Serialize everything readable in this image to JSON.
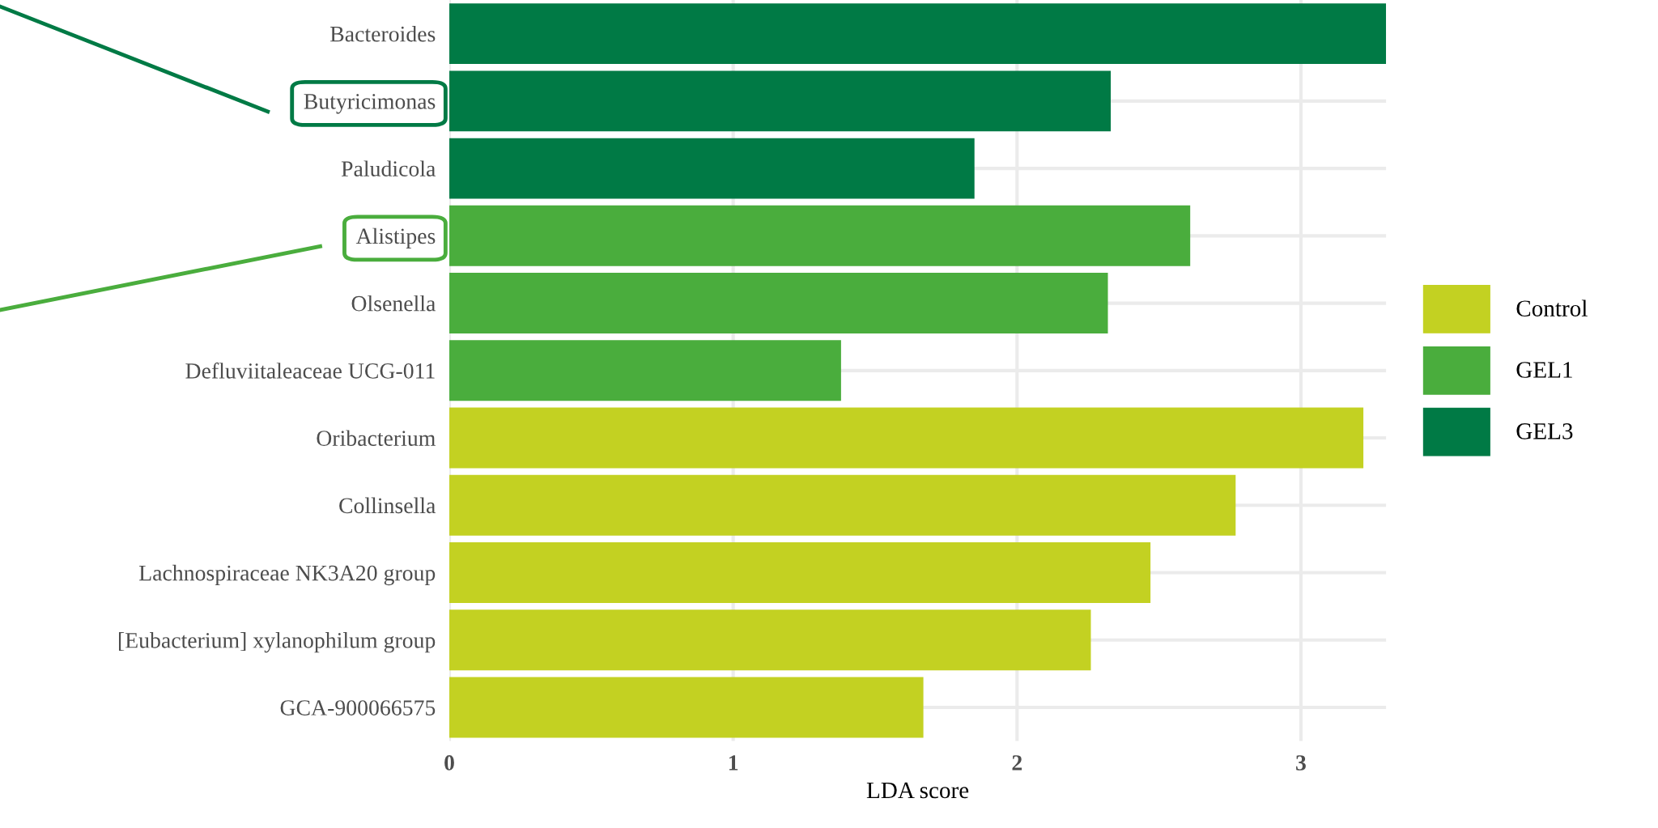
{
  "chart_data": {
    "type": "bar",
    "orientation": "horizontal",
    "xlabel": "LDA score",
    "categories": [
      "Bacteroides",
      "Butyricimonas",
      "Paludicola",
      "Alistipes",
      "Olsenella",
      "Defluviitaleaceae UCG-011",
      "Oribacterium",
      "Collinsella",
      "Lachnospiraceae NK3A20 group",
      "[Eubacterium] xylanophilum group",
      "GCA-900066575"
    ],
    "series": [
      {
        "name": "Control",
        "color": "#c3d122",
        "values": [
          null,
          null,
          null,
          null,
          null,
          null,
          3.22,
          2.77,
          2.47,
          2.26,
          1.67
        ]
      },
      {
        "name": "GEL1",
        "color": "#4aad3d",
        "values": [
          null,
          null,
          null,
          2.61,
          2.32,
          1.38,
          null,
          null,
          null,
          null,
          null
        ]
      },
      {
        "name": "GEL3",
        "color": "#007a45",
        "values": [
          3.3,
          2.33,
          1.85,
          null,
          null,
          null,
          null,
          null,
          null,
          null,
          null
        ]
      }
    ],
    "xlim": [
      0,
      3.3
    ],
    "xticks": [
      0,
      1,
      2,
      3
    ],
    "grid": true,
    "legend": "right"
  }
}
